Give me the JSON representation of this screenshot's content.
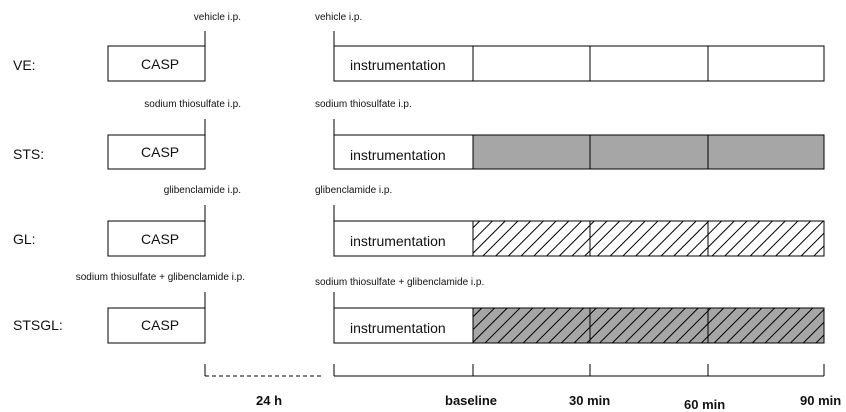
{
  "groups": [
    {
      "label": "VE:",
      "pre_note": "vehicle i.p.",
      "post_note": "vehicle i.p.",
      "pre_box": "CASP",
      "instr_box": "instrumentation",
      "fill": "white"
    },
    {
      "label": "STS:",
      "pre_note": "sodium thiosulfate i.p.",
      "post_note": "sodium thiosulfate i.p.",
      "pre_box": "CASP",
      "instr_box": "instrumentation",
      "fill": "gray"
    },
    {
      "label": "GL:",
      "pre_note": "glibenclamide i.p.",
      "post_note": "glibenclamide i.p.",
      "pre_box": "CASP",
      "instr_box": "instrumentation",
      "fill": "hatch"
    },
    {
      "label": "STSGL:",
      "pre_note": "sodium thiosulfate + glibenclamide i.p.",
      "post_note": "sodium thiosulfate + glibenclamide i.p.",
      "pre_box": "CASP",
      "instr_box": "instrumentation",
      "fill": "gray-hatch"
    }
  ],
  "axis": {
    "gap_label": "24 h",
    "ticks": [
      "baseline",
      "30 min",
      "60 min",
      "90 min"
    ]
  },
  "colors": {
    "gray_fill": "#a6a6a6",
    "line": "#000000"
  }
}
